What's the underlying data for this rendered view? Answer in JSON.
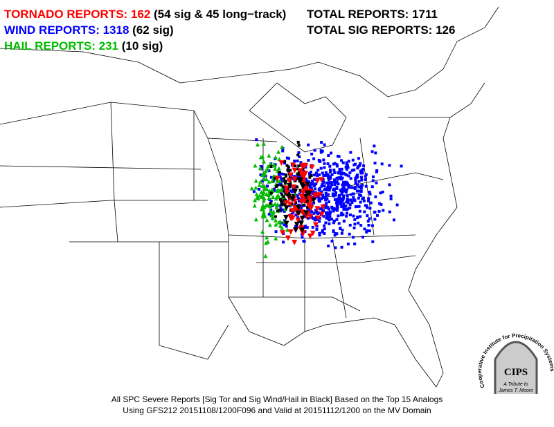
{
  "legend": {
    "tornado": {
      "label": "TORNADO REPORTS: 162",
      "detail": "(54 sig & 45 long−track)"
    },
    "wind": {
      "label": "WIND REPORTS: 1318",
      "detail": "(62 sig)"
    },
    "hail": {
      "label": "HAIL REPORTS: 231",
      "detail": "(10 sig)"
    },
    "total": "TOTAL REPORTS: 1711",
    "total_sig": "TOTAL SIG REPORTS: 126"
  },
  "caption": [
    "All SPC Severe Reports [Sig Tor and Sig Wind/Hail in Black] Based on the Top 15 Analogs",
    "Using GFS212 20151108/1200F096 and Valid at 20151112/1200 on the MV Domain"
  ],
  "logo": {
    "name": "CIPS",
    "ring": "Cooperative Institute for Precipitation Systems",
    "tribute": "A Tribute to",
    "person": "James T. Moore"
  }
}
